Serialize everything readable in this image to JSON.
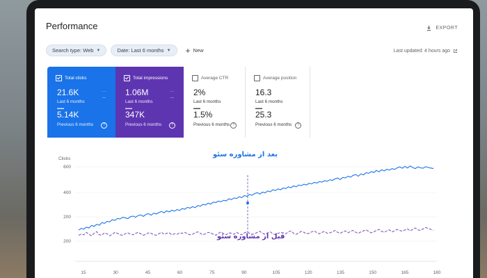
{
  "header": {
    "title": "Performance",
    "export_label": "EXPORT"
  },
  "filters": {
    "search_type": "Search type: Web",
    "date": "Date: Last 6 months",
    "new_label": "New",
    "last_updated": "Last updated: 4 hours ago"
  },
  "cards": [
    {
      "label": "Total clicks",
      "checked": true,
      "value_current": "21.6K",
      "current_period": "Last 6 months",
      "value_previous": "5.14K",
      "previous_period": "Previous 6 months",
      "color": "#1a73e8"
    },
    {
      "label": "Total impressions",
      "checked": true,
      "value_current": "1.06M",
      "current_period": "Last 6 months",
      "value_previous": "347K",
      "previous_period": "Previous 6 months",
      "color": "#5e35b1"
    },
    {
      "label": "Average CTR",
      "checked": false,
      "value_current": "2%",
      "current_period": "Last 6 months",
      "value_previous": "1.5%",
      "previous_period": "Previous 6 months"
    },
    {
      "label": "Average position",
      "checked": false,
      "value_current": "16.3",
      "current_period": "Last 6 months",
      "value_previous": "25.3",
      "previous_period": "Previous 6 months"
    }
  ],
  "annotations": {
    "after": "بعد از مشاوره سئو",
    "before": "قبل از مشاوره سئو"
  },
  "chart_data": {
    "type": "line",
    "ylabel": "Clicks",
    "y_ticks": [
      "600",
      "400",
      "200",
      "200"
    ],
    "x_ticks": [
      "15",
      "30",
      "45",
      "60",
      "75",
      "90",
      "105",
      "120",
      "135",
      "150",
      "165",
      "180"
    ],
    "series": [
      {
        "color": "#1a73e8",
        "dashed": false,
        "values": [
          100,
          115,
          108,
          125,
          118,
          140,
          132,
          150,
          142,
          165,
          158,
          175,
          170,
          190,
          182,
          200,
          195,
          210,
          205,
          198,
          215,
          220,
          210,
          225,
          230,
          218,
          235,
          240,
          228,
          245,
          238,
          250,
          260,
          248,
          265,
          255,
          270,
          262,
          275,
          268,
          285,
          278,
          295,
          288,
          300,
          292,
          310,
          305,
          320,
          315,
          330,
          322,
          340,
          335,
          348,
          342,
          355,
          350,
          368,
          360,
          375,
          370,
          385,
          378,
          395,
          388,
          405,
          398,
          412,
          420,
          408,
          425,
          418,
          435,
          428,
          445,
          438,
          452,
          445,
          460,
          455,
          470,
          462,
          478,
          470,
          485,
          480,
          492,
          486,
          500,
          495,
          508,
          502,
          515,
          510,
          522,
          518,
          530,
          525,
          538,
          545,
          532,
          550,
          545,
          560,
          552,
          568,
          575,
          560,
          580,
          572,
          590,
          585,
          600,
          592,
          610,
          598,
          615,
          605,
          620,
          612,
          625,
          618,
          632,
          640,
          628,
          645,
          630,
          648,
          635,
          625,
          640,
          632,
          628,
          642,
          635,
          630,
          625
        ]
      },
      {
        "color": "#7e57c2",
        "dashed": true,
        "values": [
          10,
          15,
          12,
          22,
          14,
          8,
          18,
          25,
          12,
          10,
          20,
          16,
          8,
          14,
          22,
          18,
          12,
          10,
          16,
          20,
          14,
          12,
          18,
          22,
          16,
          10,
          14,
          20,
          18,
          12,
          10,
          16,
          22,
          14,
          18,
          20,
          12,
          16,
          14,
          20,
          18,
          22,
          16,
          12,
          14,
          20,
          24,
          18,
          12,
          16,
          22,
          20,
          14,
          10,
          18,
          24,
          16,
          12,
          20,
          18,
          14,
          22,
          16,
          12,
          20,
          24,
          18,
          14,
          16,
          22,
          26,
          18,
          14,
          20,
          24,
          16,
          12,
          18,
          22,
          20,
          16,
          24,
          28,
          18,
          14,
          20,
          26,
          22,
          16,
          18,
          24,
          28,
          20,
          16,
          22,
          26,
          18,
          20,
          24,
          30,
          22,
          18,
          24,
          28,
          20,
          26,
          30,
          22,
          18,
          24,
          28,
          32,
          26,
          20,
          24,
          30,
          34,
          26,
          22,
          28,
          32,
          24,
          28,
          34,
          30,
          26,
          32,
          36,
          28,
          34,
          40,
          32,
          30,
          36,
          42,
          38,
          34,
          30
        ]
      }
    ],
    "ylim": [
      0,
      700
    ]
  }
}
